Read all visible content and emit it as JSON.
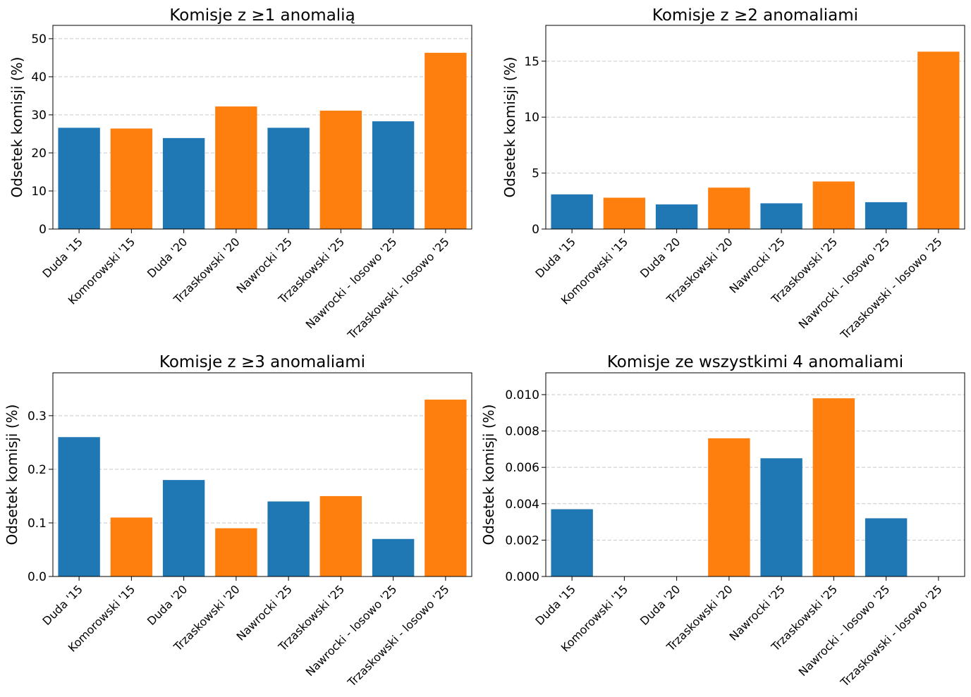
{
  "colors": {
    "blue": "#1f77b4",
    "orange": "#ff7f0e",
    "grid": "#c8c8c8"
  },
  "chart_data": [
    {
      "type": "bar",
      "title": "Komisje z ≥1 anomalią",
      "ylabel": "Odsetek komisji (%)",
      "xlabel": "",
      "categories": [
        "Duda '15",
        "Komorowski '15",
        "Duda '20",
        "Trzaskowski '20",
        "Nawrocki '25",
        "Trzaskowski '25",
        "Nawrocki - losowo '25",
        "Trzaskowski - losowo '25"
      ],
      "values": [
        26.6,
        26.4,
        23.9,
        32.2,
        26.6,
        31.1,
        28.3,
        46.3
      ],
      "bar_colors": [
        "blue",
        "orange",
        "blue",
        "orange",
        "blue",
        "orange",
        "blue",
        "orange"
      ],
      "ylim": [
        0,
        53.5
      ],
      "yticks": [
        0,
        10,
        20,
        30,
        40,
        50
      ],
      "ytick_labels": [
        "0",
        "10",
        "20",
        "30",
        "40",
        "50"
      ],
      "grid": true
    },
    {
      "type": "bar",
      "title": "Komisje z ≥2 anomaliami",
      "ylabel": "Odsetek komisji (%)",
      "xlabel": "",
      "categories": [
        "Duda '15",
        "Komorowski '15",
        "Duda '20",
        "Trzaskowski '20",
        "Nawrocki '25",
        "Trzaskowski '25",
        "Nawrocki - losowo '25",
        "Trzaskowski - losowo '25"
      ],
      "values": [
        3.1,
        2.8,
        2.2,
        3.7,
        2.3,
        4.25,
        2.4,
        15.85
      ],
      "bar_colors": [
        "blue",
        "orange",
        "blue",
        "orange",
        "blue",
        "orange",
        "blue",
        "orange"
      ],
      "ylim": [
        0,
        18.2
      ],
      "yticks": [
        0,
        5,
        10,
        15
      ],
      "ytick_labels": [
        "0",
        "5",
        "10",
        "15"
      ],
      "grid": true
    },
    {
      "type": "bar",
      "title": "Komisje z ≥3 anomaliami",
      "ylabel": "Odsetek komisji (%)",
      "xlabel": "",
      "categories": [
        "Duda '15",
        "Komorowski '15",
        "Duda '20",
        "Trzaskowski '20",
        "Nawrocki '25",
        "Trzaskowski '25",
        "Nawrocki - losowo '25",
        "Trzaskowski - losowo '25"
      ],
      "values": [
        0.26,
        0.11,
        0.18,
        0.09,
        0.14,
        0.15,
        0.07,
        0.33
      ],
      "bar_colors": [
        "blue",
        "orange",
        "blue",
        "orange",
        "blue",
        "orange",
        "blue",
        "orange"
      ],
      "ylim": [
        0,
        0.38
      ],
      "yticks": [
        0,
        0.1,
        0.2,
        0.3
      ],
      "ytick_labels": [
        "0.0",
        "0.1",
        "0.2",
        "0.3"
      ],
      "grid": true
    },
    {
      "type": "bar",
      "title": "Komisje ze wszystkimi 4 anomaliami",
      "ylabel": "Odsetek komisji (%)",
      "xlabel": "",
      "categories": [
        "Duda '15",
        "Komorowski '15",
        "Duda '20",
        "Trzaskowski '20",
        "Nawrocki '25",
        "Trzaskowski '25",
        "Nawrocki - losowo '25",
        "Trzaskowski - losowo '25"
      ],
      "values": [
        0.0037,
        0,
        0,
        0.0076,
        0.0065,
        0.0098,
        0.0032,
        0
      ],
      "bar_colors": [
        "blue",
        "orange",
        "blue",
        "orange",
        "blue",
        "orange",
        "blue",
        "orange"
      ],
      "ylim": [
        0,
        0.0112
      ],
      "yticks": [
        0,
        0.002,
        0.004,
        0.006,
        0.008,
        0.01
      ],
      "ytick_labels": [
        "0.000",
        "0.002",
        "0.004",
        "0.006",
        "0.008",
        "0.010"
      ],
      "grid": true
    }
  ]
}
